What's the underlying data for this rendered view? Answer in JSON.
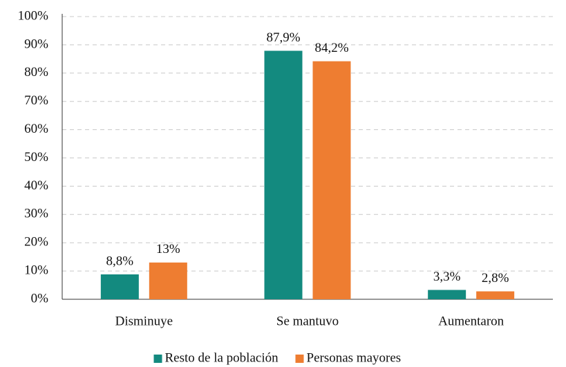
{
  "chart_data": {
    "type": "bar",
    "categories": [
      "Disminuye",
      "Se mantuvo",
      "Aumentaron"
    ],
    "series": [
      {
        "name": "Resto de la población",
        "color": "#138a7f",
        "values": [
          8.8,
          87.9,
          3.3
        ],
        "value_labels": [
          "8,8%",
          "87,9%",
          "3,3%"
        ]
      },
      {
        "name": "Personas mayores",
        "color": "#ee7d31",
        "values": [
          13,
          84.2,
          2.8
        ],
        "value_labels": [
          "13%",
          "84,2%",
          "2,8%"
        ]
      }
    ],
    "ylim": [
      0,
      100
    ],
    "yticks": [
      {
        "value": 0,
        "label": "0%"
      },
      {
        "value": 10,
        "label": "10%"
      },
      {
        "value": 20,
        "label": "20%"
      },
      {
        "value": 30,
        "label": "30%"
      },
      {
        "value": 40,
        "label": "40%"
      },
      {
        "value": 50,
        "label": "50%"
      },
      {
        "value": 60,
        "label": "60%"
      },
      {
        "value": 70,
        "label": "70%"
      },
      {
        "value": 80,
        "label": "80%"
      },
      {
        "value": 90,
        "label": "90%"
      },
      {
        "value": 100,
        "label": "100%"
      }
    ],
    "grid": true,
    "legend": "bottom"
  }
}
